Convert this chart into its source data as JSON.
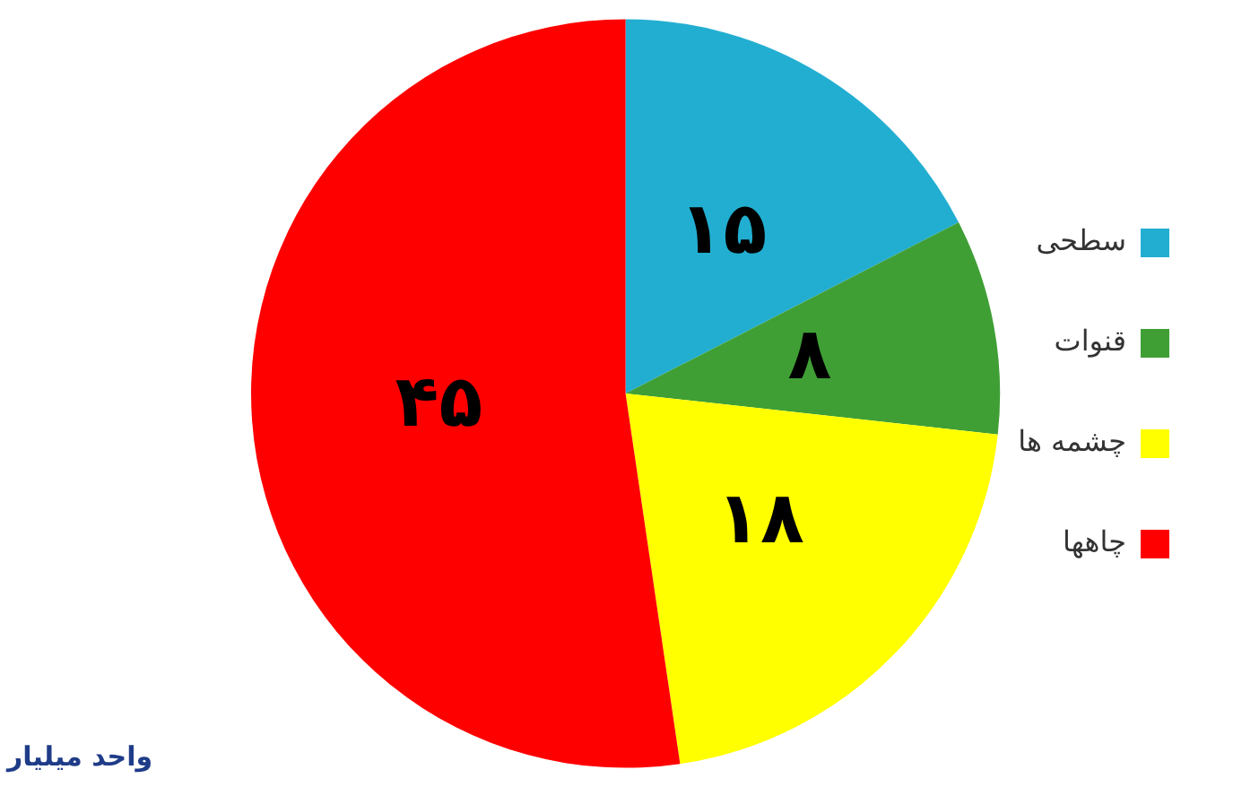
{
  "chart_data": {
    "type": "pie",
    "categories": [
      "سطحی",
      "قنوات",
      "چشمه ها",
      "چاهها"
    ],
    "values": [
      15,
      8,
      18,
      45
    ],
    "colors": [
      "#22aed1",
      "#3f9f35",
      "#ffff00",
      "#ff0000"
    ],
    "value_labels": [
      "۱۵",
      "۸",
      "۱۸",
      "۴۵"
    ],
    "legend": "right",
    "annotations": [
      "واحد میلیار"
    ]
  }
}
